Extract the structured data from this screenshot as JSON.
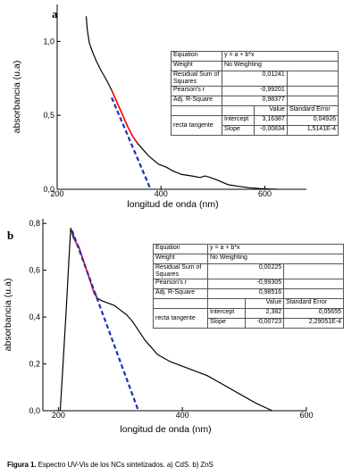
{
  "chart_data": [
    {
      "type": "line",
      "panel_label": "a",
      "xlabel": "longitud de onda (nm)",
      "ylabel": "absorbancia (u.a)",
      "xlim": [
        200,
        680
      ],
      "ylim": [
        0,
        1.25
      ],
      "xticks": [
        200,
        400,
        600
      ],
      "xtick_labels": [
        "200",
        "400",
        "600"
      ],
      "yticks": [
        0,
        0.5,
        1
      ],
      "ytick_labels": [
        "0,0",
        "0,5",
        "1,0"
      ],
      "series": [
        {
          "role": "spectrum",
          "color": "#000000",
          "x": [
            256,
            258,
            262,
            268,
            275,
            285,
            295,
            305,
            315,
            325,
            335,
            345,
            355,
            365,
            375,
            385,
            395,
            410,
            425,
            440,
            460,
            475,
            485,
            495,
            510,
            530,
            550,
            570,
            590,
            610,
            625
          ],
          "y": [
            1.17,
            1.08,
            0.99,
            0.93,
            0.87,
            0.8,
            0.74,
            0.67,
            0.59,
            0.51,
            0.43,
            0.36,
            0.31,
            0.27,
            0.23,
            0.2,
            0.17,
            0.15,
            0.12,
            0.1,
            0.09,
            0.08,
            0.09,
            0.08,
            0.06,
            0.03,
            0.02,
            0.01,
            0.005,
            0.002,
            0.0
          ]
        },
        {
          "role": "fit",
          "color": "#ff0000",
          "x": [
            305,
            315,
            325,
            335,
            345,
            353
          ],
          "y": [
            0.67,
            0.59,
            0.51,
            0.43,
            0.36,
            0.32
          ]
        },
        {
          "role": "tangent",
          "color": "#1f2fbf",
          "dashed": true,
          "x": [
            305,
            380
          ],
          "y": [
            0.62,
            0.0
          ]
        }
      ],
      "stats": {
        "equation_label": "Equation",
        "equation": "y = a + b*x",
        "weight_label": "Weight",
        "weight": "No Weighting",
        "rss_label": "Residual Sum of Squares",
        "rss": "0,01241",
        "pearson_label": "Pearson's r",
        "pearson": "-0,99201",
        "r2_label": "Adj. R-Square",
        "r2": "0,98377",
        "value_header": "Value",
        "stderr_header": "Standard Error",
        "group_label": "recta tangente",
        "intercept_label": "Intercept",
        "intercept": "3,16387",
        "intercept_err": "0,04926",
        "slope_label": "Slope",
        "slope": "-0,00834",
        "slope_err": "1,5141E-4"
      }
    },
    {
      "type": "line",
      "panel_label": "b",
      "xlabel": "longitud de onda (nm)",
      "ylabel": "absorbancia (u.a)",
      "xlim": [
        175,
        600
      ],
      "ylim": [
        0,
        0.82
      ],
      "xticks": [
        200,
        400,
        600
      ],
      "xtick_labels": [
        "200",
        "400",
        "600"
      ],
      "yticks": [
        0,
        0.2,
        0.4,
        0.6,
        0.8
      ],
      "ytick_labels": [
        "0,0",
        "0,2",
        "0,4",
        "0,6",
        "0,8"
      ],
      "series": [
        {
          "role": "spectrum",
          "color": "#000000",
          "x": [
            203,
            208,
            213,
            217,
            220,
            222,
            224,
            228,
            233,
            238,
            243,
            248,
            253,
            258,
            263,
            270,
            280,
            290,
            300,
            310,
            320,
            330,
            340,
            350,
            360,
            380,
            400,
            420,
            440,
            460,
            480,
            500,
            520,
            545
          ],
          "y": [
            0.0,
            0.22,
            0.45,
            0.65,
            0.78,
            0.76,
            0.74,
            0.72,
            0.7,
            0.66,
            0.62,
            0.58,
            0.54,
            0.5,
            0.48,
            0.47,
            0.46,
            0.45,
            0.43,
            0.41,
            0.38,
            0.34,
            0.3,
            0.27,
            0.24,
            0.21,
            0.19,
            0.17,
            0.15,
            0.12,
            0.09,
            0.06,
            0.03,
            0.0
          ]
        },
        {
          "role": "fit",
          "color": "#ff0000",
          "x": [
            223,
            228,
            233,
            238,
            243,
            248,
            253,
            258,
            262
          ],
          "y": [
            0.76,
            0.72,
            0.7,
            0.66,
            0.62,
            0.58,
            0.54,
            0.5,
            0.49
          ]
        },
        {
          "role": "tangent",
          "color": "#1f2fbf",
          "dashed": true,
          "x": [
            222,
            329
          ],
          "y": [
            0.77,
            0.0
          ]
        }
      ],
      "stats": {
        "equation_label": "Equation",
        "equation": "y = a + b*x",
        "weight_label": "Weight",
        "weight": "No Weighting",
        "rss_label": "Residual Sum of Squares",
        "rss": "0,00225",
        "pearson_label": "Pearson's r",
        "pearson": "-0,99305",
        "r2_label": "Adj. R-Square",
        "r2": "0,98516",
        "value_header": "Value",
        "stderr_header": "Standard Error",
        "group_label": "recta tangente",
        "intercept_label": "Intercept",
        "intercept": "2,382",
        "intercept_err": "0,05655",
        "slope_label": "Slope",
        "slope": "-0,00723",
        "slope_err": "2,29051E-4"
      }
    }
  ],
  "caption": {
    "figure_label": "Figura 1.",
    "text": "Espectro UV-Vis de los NCs sintetizados. a) CdS. b) ZnS"
  }
}
